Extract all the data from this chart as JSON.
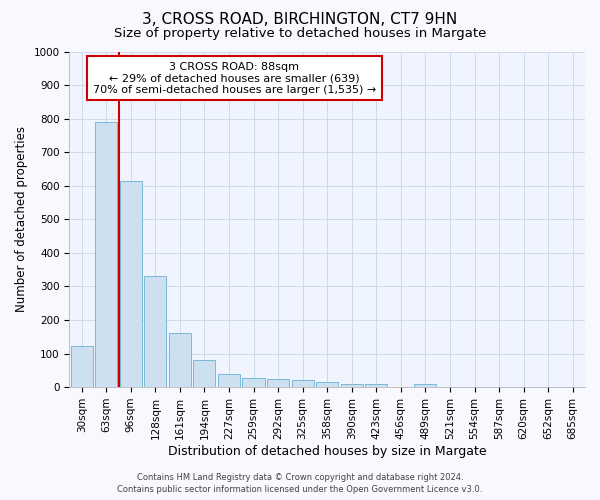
{
  "title": "3, CROSS ROAD, BIRCHINGTON, CT7 9HN",
  "subtitle": "Size of property relative to detached houses in Margate",
  "xlabel": "Distribution of detached houses by size in Margate",
  "ylabel": "Number of detached properties",
  "categories": [
    "30sqm",
    "63sqm",
    "96sqm",
    "128sqm",
    "161sqm",
    "194sqm",
    "227sqm",
    "259sqm",
    "292sqm",
    "325sqm",
    "358sqm",
    "390sqm",
    "423sqm",
    "456sqm",
    "489sqm",
    "521sqm",
    "554sqm",
    "587sqm",
    "620sqm",
    "652sqm",
    "685sqm"
  ],
  "values": [
    122,
    790,
    615,
    330,
    160,
    82,
    40,
    28,
    25,
    22,
    15,
    8,
    8,
    0,
    8,
    0,
    0,
    0,
    0,
    0,
    0
  ],
  "bar_color": "#cce0f0",
  "bar_edge_color": "#7ab8d8",
  "red_line_x": 1.5,
  "red_line_color": "#cc0000",
  "ylim": [
    0,
    1000
  ],
  "yticks": [
    0,
    100,
    200,
    300,
    400,
    500,
    600,
    700,
    800,
    900,
    1000
  ],
  "annotation_text": "3 CROSS ROAD: 88sqm\n← 29% of detached houses are smaller (639)\n70% of semi-detached houses are larger (1,535) →",
  "annotation_box_facecolor": "#ffffff",
  "annotation_box_edgecolor": "#cc0000",
  "footer_line1": "Contains HM Land Registry data © Crown copyright and database right 2024.",
  "footer_line2": "Contains public sector information licensed under the Open Government Licence v3.0.",
  "title_fontsize": 11,
  "subtitle_fontsize": 9.5,
  "xlabel_fontsize": 9,
  "ylabel_fontsize": 8.5,
  "tick_fontsize": 7.5,
  "annot_fontsize": 8,
  "footer_fontsize": 6,
  "figure_facecolor": "#f8f8ff",
  "axes_facecolor": "#f0f4ff",
  "grid_color": "#c8d4e8",
  "spine_color": "#aaaaaa"
}
